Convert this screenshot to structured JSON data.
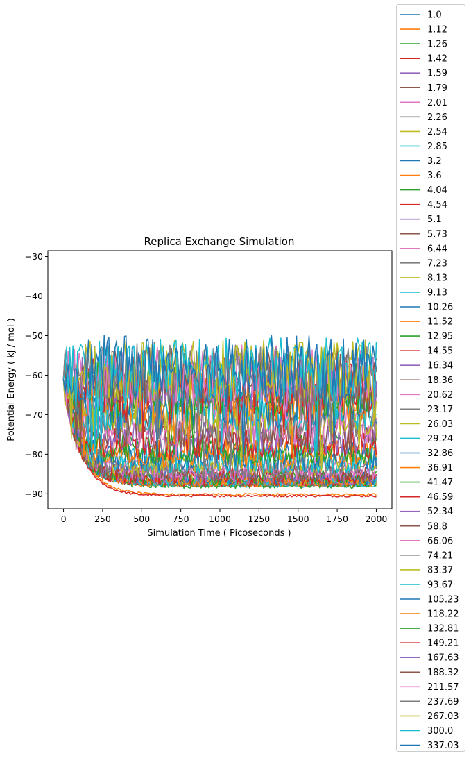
{
  "chart_data": {
    "type": "line",
    "title": "Replica Exchange Simulation",
    "xlabel": "Simulation Time ( Picoseconds )",
    "ylabel": "Potential Energy ( kJ / mol )",
    "xlim": [
      -100,
      2100
    ],
    "ylim": [
      -93.8,
      -28.5
    ],
    "xticks": [
      0,
      250,
      500,
      750,
      1000,
      1250,
      1500,
      1750,
      2000
    ],
    "yticks": [
      -30,
      -40,
      -50,
      -60,
      -70,
      -80,
      -90
    ],
    "x_range": [
      0,
      2000
    ],
    "x_step": 10,
    "initial_energy": -61,
    "grid": false,
    "legend_position": "outside-right",
    "palette": [
      "#1f77b4",
      "#ff7f0e",
      "#2ca02c",
      "#d62728",
      "#9467bd",
      "#8c564b",
      "#e377c2",
      "#7f7f7f",
      "#bcbd22",
      "#17becf"
    ],
    "series_summary": [
      {
        "name": "1.0",
        "final_energy": -87.5,
        "fluctuation": 0.4
      },
      {
        "name": "1.12",
        "final_energy": -90.2,
        "fluctuation": 0.3
      },
      {
        "name": "1.26",
        "final_energy": -87.8,
        "fluctuation": 0.4
      },
      {
        "name": "1.42",
        "final_energy": -90.5,
        "fluctuation": 0.3
      },
      {
        "name": "1.59",
        "final_energy": -87.3,
        "fluctuation": 0.4
      },
      {
        "name": "1.79",
        "final_energy": -87.5,
        "fluctuation": 0.5
      },
      {
        "name": "2.01",
        "final_energy": -87.2,
        "fluctuation": 0.6
      },
      {
        "name": "2.26",
        "final_energy": -87.6,
        "fluctuation": 0.6
      },
      {
        "name": "2.54",
        "final_energy": -87.0,
        "fluctuation": 0.7
      },
      {
        "name": "2.85",
        "final_energy": -87.7,
        "fluctuation": 0.7
      },
      {
        "name": "3.2",
        "final_energy": -86.8,
        "fluctuation": 0.8
      },
      {
        "name": "3.6",
        "final_energy": -87.5,
        "fluctuation": 0.8
      },
      {
        "name": "4.04",
        "final_energy": -87.8,
        "fluctuation": 0.9
      },
      {
        "name": "4.54",
        "final_energy": -87.2,
        "fluctuation": 1.0
      },
      {
        "name": "5.1",
        "final_energy": -86.9,
        "fluctuation": 1.0
      },
      {
        "name": "5.73",
        "final_energy": -87.0,
        "fluctuation": 1.1
      },
      {
        "name": "6.44",
        "final_energy": -86.7,
        "fluctuation": 1.2
      },
      {
        "name": "7.23",
        "final_energy": -86.8,
        "fluctuation": 1.3
      },
      {
        "name": "8.13",
        "final_energy": -86.4,
        "fluctuation": 1.4
      },
      {
        "name": "9.13",
        "final_energy": -86.5,
        "fluctuation": 1.6
      },
      {
        "name": "10.26",
        "final_energy": -86.0,
        "fluctuation": 1.7
      },
      {
        "name": "11.52",
        "final_energy": -86.3,
        "fluctuation": 1.9
      },
      {
        "name": "12.95",
        "final_energy": -85.8,
        "fluctuation": 2.0
      },
      {
        "name": "14.55",
        "final_energy": -85.5,
        "fluctuation": 2.2
      },
      {
        "name": "16.34",
        "final_energy": -85.0,
        "fluctuation": 2.4
      },
      {
        "name": "18.36",
        "final_energy": -84.5,
        "fluctuation": 2.6
      },
      {
        "name": "20.62",
        "final_energy": -83.8,
        "fluctuation": 2.8
      },
      {
        "name": "23.17",
        "final_energy": -83.0,
        "fluctuation": 3.0
      },
      {
        "name": "26.03",
        "final_energy": -82.2,
        "fluctuation": 3.2
      },
      {
        "name": "29.24",
        "final_energy": -81.5,
        "fluctuation": 3.4
      },
      {
        "name": "32.86",
        "final_energy": -80.5,
        "fluctuation": 3.6
      },
      {
        "name": "36.91",
        "final_energy": -79.5,
        "fluctuation": 3.8
      },
      {
        "name": "41.47",
        "final_energy": -78.5,
        "fluctuation": 4.0
      },
      {
        "name": "46.59",
        "final_energy": -77.0,
        "fluctuation": 4.3
      },
      {
        "name": "52.34",
        "final_energy": -75.5,
        "fluctuation": 4.6
      },
      {
        "name": "58.8",
        "final_energy": -74.0,
        "fluctuation": 4.9
      },
      {
        "name": "66.06",
        "final_energy": -72.5,
        "fluctuation": 5.2
      },
      {
        "name": "74.21",
        "final_energy": -71.0,
        "fluctuation": 5.5
      },
      {
        "name": "83.37",
        "final_energy": -69.5,
        "fluctuation": 5.8
      },
      {
        "name": "93.67",
        "final_energy": -68.0,
        "fluctuation": 6.1
      },
      {
        "name": "105.23",
        "final_energy": -66.5,
        "fluctuation": 6.4
      },
      {
        "name": "118.22",
        "final_energy": -65.0,
        "fluctuation": 6.7
      },
      {
        "name": "132.81",
        "final_energy": -63.5,
        "fluctuation": 7.0
      },
      {
        "name": "149.21",
        "final_energy": -62.5,
        "fluctuation": 7.2
      },
      {
        "name": "167.63",
        "final_energy": -61.5,
        "fluctuation": 7.4
      },
      {
        "name": "188.32",
        "final_energy": -60.5,
        "fluctuation": 7.6
      },
      {
        "name": "211.57",
        "final_energy": -60.0,
        "fluctuation": 7.7
      },
      {
        "name": "237.69",
        "final_energy": -59.5,
        "fluctuation": 7.8
      },
      {
        "name": "267.03",
        "final_energy": -59.0,
        "fluctuation": 7.9
      },
      {
        "name": "300.0",
        "final_energy": -58.5,
        "fluctuation": 8.0
      },
      {
        "name": "337.03",
        "final_energy": -58.0,
        "fluctuation": 8.1
      }
    ]
  }
}
